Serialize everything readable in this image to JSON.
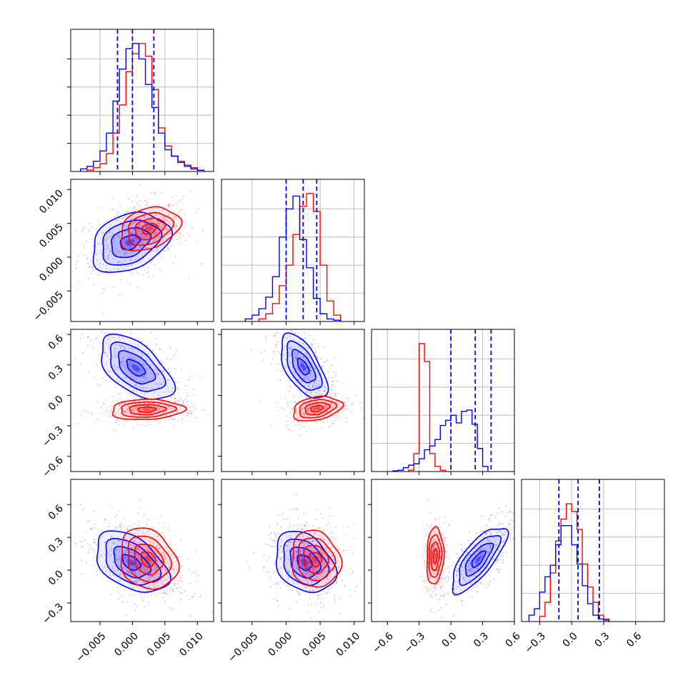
{
  "chart_data": {
    "type": "corner",
    "grid": true,
    "colors": {
      "series_a": "#0000ff",
      "series_b": "#ff0000"
    },
    "series": [
      {
        "color": "#0000ff"
      },
      {
        "color": "#ff0000"
      }
    ],
    "parameters": [
      {
        "range": [
          -0.0095,
          0.0125
        ],
        "ticks": [
          -0.005,
          0.0,
          0.005,
          0.01
        ],
        "tick_labels": [
          "−0.005",
          "0.000",
          "0.005",
          "0.010"
        ],
        "y_range": [
          -0.0095,
          0.0115
        ],
        "y_ticks": [
          -0.005,
          0.0,
          0.005,
          0.01
        ],
        "y_tick_labels": [
          "−0.005",
          "0.000",
          "0.005",
          "0.010"
        ]
      },
      {
        "range": [
          -0.0095,
          0.0115
        ],
        "ticks": [
          -0.005,
          0.0,
          0.005,
          0.01
        ],
        "tick_labels": [
          "−0.005",
          "0.000",
          "0.005",
          "0.010"
        ],
        "y_range": [
          -0.75,
          0.65
        ],
        "y_ticks": [
          -0.6,
          -0.3,
          0.0,
          0.3,
          0.6
        ],
        "y_tick_labels": [
          "−0.6",
          "−0.3",
          "0.0",
          "0.3",
          "0.6"
        ]
      },
      {
        "range": [
          -0.75,
          0.6
        ],
        "ticks": [
          -0.6,
          -0.3,
          0.0,
          0.3,
          0.6
        ],
        "tick_labels": [
          "−0.6",
          "−0.3",
          "0.0",
          "0.3",
          "0.6"
        ],
        "y_range": [
          -0.47,
          0.83
        ],
        "y_ticks": [
          -0.3,
          0.0,
          0.3,
          0.6
        ],
        "y_tick_labels": [
          "−0.3",
          "0.0",
          "0.3",
          "0.6"
        ]
      },
      {
        "range": [
          -0.47,
          0.87
        ],
        "ticks": [
          -0.3,
          0.0,
          0.3,
          0.6
        ],
        "tick_labels": [
          "−0.3",
          "0.0",
          "0.3",
          "0.6"
        ]
      }
    ],
    "quantiles": [
      [
        -0.0023,
        0.0,
        0.0033
      ],
      [
        0.0,
        0.0025,
        0.0045
      ],
      [
        0.0,
        0.23,
        0.38
      ],
      [
        -0.12,
        0.06,
        0.26
      ]
    ],
    "marginals": [
      {
        "bin_width": 0.001,
        "a_start": -0.008,
        "a": [
          0.02,
          0.04,
          0.08,
          0.16,
          0.3,
          0.55,
          0.8,
          0.96,
          1.0,
          0.88,
          0.68,
          0.5,
          0.3,
          0.17,
          0.12,
          0.07,
          0.04,
          0.02,
          0.01
        ],
        "b_start": -0.007,
        "b": [
          0.01,
          0.03,
          0.06,
          0.14,
          0.3,
          0.52,
          0.78,
          0.92,
          1.0,
          0.9,
          0.64,
          0.34,
          0.2,
          0.12,
          0.08,
          0.05,
          0.03,
          0.01
        ]
      },
      {
        "bin_width": 0.001,
        "a_start": -0.006,
        "a": [
          0.02,
          0.05,
          0.1,
          0.19,
          0.35,
          0.66,
          0.88,
          0.98,
          0.64,
          0.42,
          0.18,
          0.06,
          0.02,
          0.01
        ],
        "b_start": -0.004,
        "b": [
          0.02,
          0.06,
          0.14,
          0.28,
          0.44,
          0.68,
          0.9,
          1.0,
          0.86,
          0.44,
          0.16,
          0.05
        ]
      },
      {
        "bin_width": 0.05,
        "a_start": -0.55,
        "a": [
          0.005,
          0.01,
          0.03,
          0.05,
          0.06,
          0.1,
          0.17,
          0.2,
          0.25,
          0.36,
          0.4,
          0.44,
          0.38,
          0.47,
          0.48,
          0.37,
          0.18,
          0.04
        ],
        "b_start": -0.4,
        "b": [
          0.01,
          0.14,
          1.0,
          0.86,
          0.14,
          0.04,
          0.01
        ]
      },
      {
        "bin_width": 0.05,
        "a_start": -0.4,
        "a": [
          0.05,
          0.1,
          0.23,
          0.35,
          0.44,
          0.6,
          0.75,
          0.75,
          0.6,
          0.45,
          0.28,
          0.14,
          0.05,
          0.02,
          0.01
        ],
        "b_start": -0.3,
        "b": [
          0.04,
          0.15,
          0.38,
          0.63,
          0.8,
          0.92,
          0.86,
          0.72,
          0.45,
          0.27,
          0.15,
          0.05,
          0.02
        ]
      }
    ],
    "joints": [
      {
        "x": 0,
        "y": 1,
        "a": {
          "mean": [
            -0.0004,
            0.0022
          ],
          "sd": [
            0.003,
            0.0022
          ],
          "rho": 0.3
        },
        "b": {
          "mean": [
            0.0026,
            0.0042
          ],
          "sd": [
            0.0023,
            0.0016
          ],
          "rho": 0.3
        }
      },
      {
        "x": 0,
        "y": 2,
        "a": {
          "mean": [
            0.0005,
            0.27
          ],
          "sd": [
            0.0028,
            0.16
          ],
          "rho": -0.55
        },
        "b": {
          "mean": [
            0.0022,
            -0.14
          ],
          "sd": [
            0.0028,
            0.05
          ],
          "rho": 0.1
        }
      },
      {
        "x": 1,
        "y": 2,
        "a": {
          "mean": [
            0.0025,
            0.28
          ],
          "sd": [
            0.0017,
            0.16
          ],
          "rho": -0.6
        },
        "b": {
          "mean": [
            0.0045,
            -0.13
          ],
          "sd": [
            0.0018,
            0.06
          ],
          "rho": 0.3
        }
      },
      {
        "x": 0,
        "y": 3,
        "a": {
          "mean": [
            -0.0002,
            0.07
          ],
          "sd": [
            0.0028,
            0.14
          ],
          "rho": -0.45
        },
        "b": {
          "mean": [
            0.0024,
            0.1
          ],
          "sd": [
            0.0022,
            0.14
          ],
          "rho": -0.2
        }
      },
      {
        "x": 1,
        "y": 3,
        "a": {
          "mean": [
            0.0027,
            0.07
          ],
          "sd": [
            0.0022,
            0.14
          ],
          "rho": -0.3
        },
        "b": {
          "mean": [
            0.0043,
            0.1
          ],
          "sd": [
            0.0018,
            0.13
          ],
          "rho": -0.1
        }
      },
      {
        "x": 2,
        "y": 3,
        "a": {
          "mean": [
            0.26,
            0.1
          ],
          "sd": [
            0.13,
            0.15
          ],
          "rho": 0.75
        },
        "b": {
          "mean": [
            -0.15,
            0.13
          ],
          "sd": [
            0.04,
            0.13
          ],
          "rho": 0.1
        }
      }
    ]
  }
}
